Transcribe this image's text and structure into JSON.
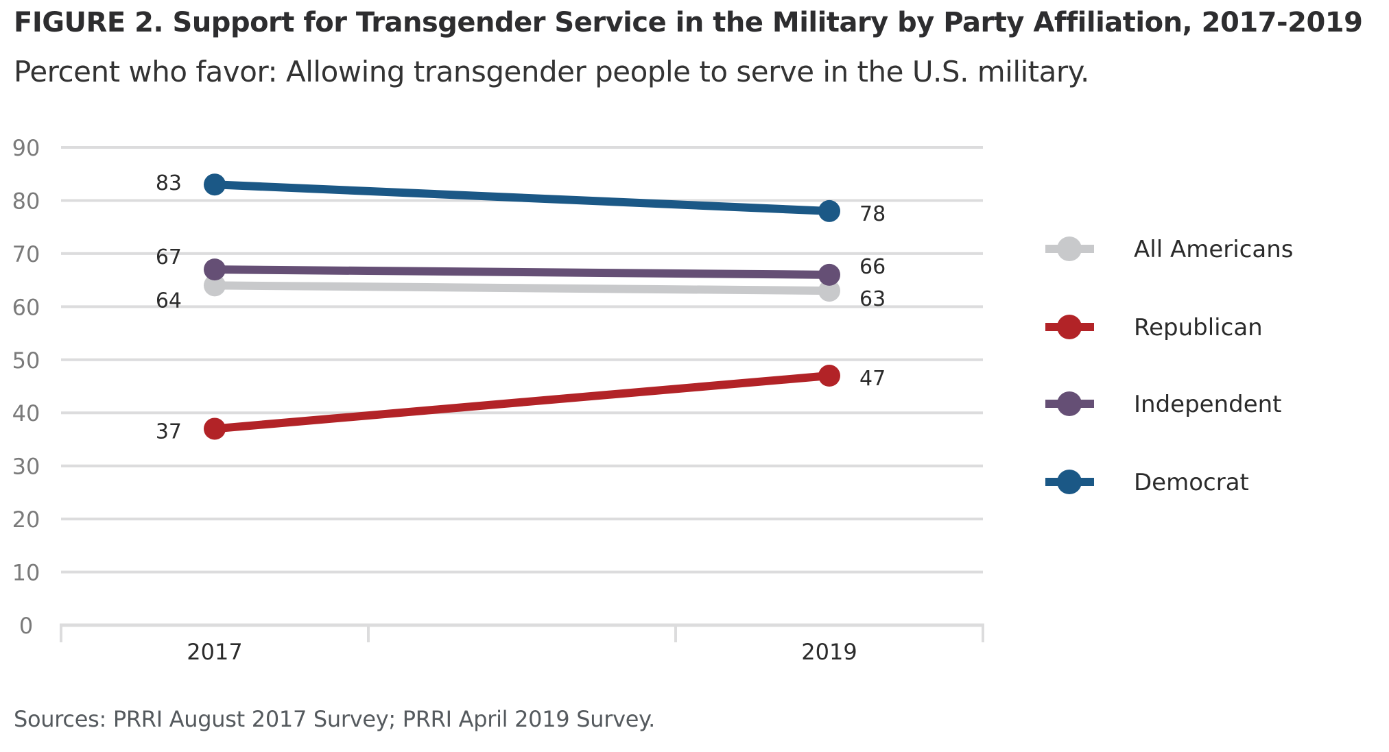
{
  "header": {
    "title": "FIGURE 2.  Support for Transgender Service in the Military by Party Affiliation, 2017-2019",
    "subtitle": "Percent who favor: Allowing transgender people to serve in the U.S. military."
  },
  "footer": {
    "sources": "Sources: PRRI August 2017 Survey; PRRI April 2019 Survey."
  },
  "chart_data": {
    "type": "line",
    "title": "FIGURE 2.  Support for Transgender Service in the Military by Party Affiliation, 2017-2019",
    "subtitle": "Percent who favor: Allowing transgender people to serve in the U.S. military.",
    "xlabel": "",
    "ylabel": "",
    "categories": [
      "2017",
      "",
      "2019"
    ],
    "ylim": [
      0,
      90
    ],
    "yticks": [
      0,
      10,
      20,
      30,
      40,
      50,
      60,
      70,
      80,
      90
    ],
    "grid": true,
    "legend_position": "right",
    "series": [
      {
        "name": "All Americans",
        "color": "#c8c9cb",
        "x": [
          "2017",
          "2019"
        ],
        "values": [
          64,
          63
        ]
      },
      {
        "name": "Republican",
        "color": "#b22327",
        "x": [
          "2017",
          "2019"
        ],
        "values": [
          37,
          47
        ]
      },
      {
        "name": "Independent",
        "color": "#654f75",
        "x": [
          "2017",
          "2019"
        ],
        "values": [
          67,
          66
        ]
      },
      {
        "name": "Democrat",
        "color": "#1b5886",
        "x": [
          "2017",
          "2019"
        ],
        "values": [
          83,
          78
        ]
      }
    ],
    "sources": "Sources: PRRI August 2017 Survey; PRRI April 2019 Survey."
  }
}
